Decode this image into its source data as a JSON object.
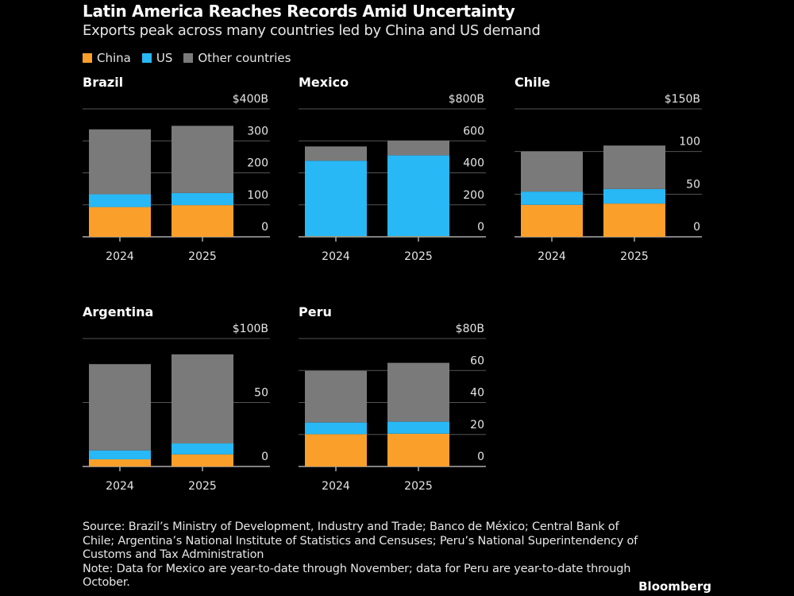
{
  "title": "Latin America Reaches Records Amid Uncertainty",
  "subtitle": "Exports peak across many countries led by China and US demand",
  "colors": {
    "China": "#fb9f2b",
    "US": "#27b8f5",
    "Other countries": "#7a7a7a",
    "grid": "#555555",
    "background": "#000000"
  },
  "legend": [
    "China",
    "US",
    "Other countries"
  ],
  "chart_data": [
    {
      "type": "bar",
      "stacked": true,
      "title": "Brazil",
      "categories": [
        "2024",
        "2025"
      ],
      "ylim": [
        0,
        400
      ],
      "ticks": [
        "0",
        "100",
        "200",
        "300",
        "$400B"
      ],
      "tick_values": [
        0,
        100,
        200,
        300,
        400
      ],
      "series": [
        {
          "name": "China",
          "values": [
            93,
            99
          ]
        },
        {
          "name": "US",
          "values": [
            40,
            38
          ]
        },
        {
          "name": "Other countries",
          "values": [
            203,
            210
          ]
        }
      ]
    },
    {
      "type": "bar",
      "stacked": true,
      "title": "Mexico",
      "categories": [
        "2024",
        "2025"
      ],
      "ylim": [
        0,
        800
      ],
      "ticks": [
        "0",
        "200",
        "400",
        "600",
        "$800B"
      ],
      "tick_values": [
        0,
        200,
        400,
        600,
        800
      ],
      "series": [
        {
          "name": "China",
          "values": [
            3,
            3
          ]
        },
        {
          "name": "US",
          "values": [
            473,
            506
          ]
        },
        {
          "name": "Other countries",
          "values": [
            89,
            93
          ]
        }
      ]
    },
    {
      "type": "bar",
      "stacked": true,
      "title": "Chile",
      "categories": [
        "2024",
        "2025"
      ],
      "ylim": [
        0,
        150
      ],
      "ticks": [
        "0",
        "50",
        "100",
        "$150B"
      ],
      "tick_values": [
        0,
        50,
        100,
        150
      ],
      "series": [
        {
          "name": "China",
          "values": [
            37.5,
            39
          ]
        },
        {
          "name": "US",
          "values": [
            15.5,
            17
          ]
        },
        {
          "name": "Other countries",
          "values": [
            47,
            51
          ]
        }
      ]
    },
    {
      "type": "bar",
      "stacked": true,
      "title": "Argentina",
      "categories": [
        "2024",
        "2025"
      ],
      "ylim": [
        0,
        100
      ],
      "ticks": [
        "0",
        "50",
        "$100B"
      ],
      "tick_values": [
        0,
        50,
        100
      ],
      "series": [
        {
          "name": "China",
          "values": [
            5.6,
            9.5
          ]
        },
        {
          "name": "US",
          "values": [
            7,
            8.5
          ]
        },
        {
          "name": "Other countries",
          "values": [
            67.4,
            69.6
          ]
        }
      ]
    },
    {
      "type": "bar",
      "stacked": true,
      "title": "Peru",
      "categories": [
        "2024",
        "2025"
      ],
      "ylim": [
        0,
        80
      ],
      "ticks": [
        "0",
        "20",
        "40",
        "60",
        "$80B"
      ],
      "tick_values": [
        0,
        20,
        40,
        60,
        80
      ],
      "series": [
        {
          "name": "China",
          "values": [
            20.2,
            20.5
          ]
        },
        {
          "name": "US",
          "values": [
            7.3,
            7.5
          ]
        },
        {
          "name": "Other countries",
          "values": [
            32.3,
            36.8
          ]
        }
      ]
    }
  ],
  "footer": {
    "source": "Source: Brazil’s Ministry of Development, Industry and Trade; Banco de México; Central Bank of Chile; Argentina’s National Institute of Statistics and Censuses; Peru’s National Superintendency of Customs and Tax Administration",
    "note": "Note: Data for Mexico are year-to-date through November; data for Peru are year-to-date through October."
  },
  "brand": "Bloomberg"
}
